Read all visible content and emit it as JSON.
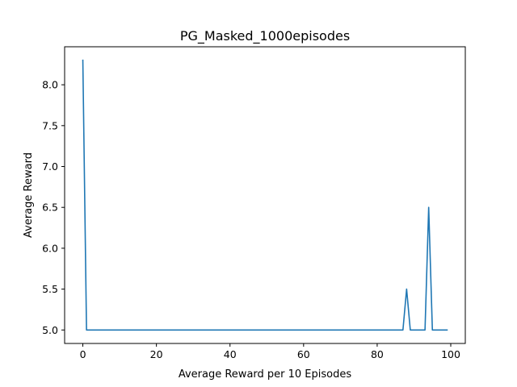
{
  "chart_data": {
    "type": "line",
    "title": "PG_Masked_1000episodes",
    "xlabel": "Average Reward per 10 Episodes",
    "ylabel": "Average Reward",
    "xlim": [
      -4.95,
      103.95
    ],
    "ylim": [
      4.835,
      8.465
    ],
    "grid": false,
    "legend": "none",
    "xticks": [
      0,
      20,
      40,
      60,
      80,
      100
    ],
    "xtick_labels": [
      "0",
      "20",
      "40",
      "60",
      "80",
      "100"
    ],
    "yticks": [
      5.0,
      5.5,
      6.0,
      6.5,
      7.0,
      7.5,
      8.0
    ],
    "ytick_labels": [
      "5.0",
      "5.5",
      "6.0",
      "6.5",
      "7.0",
      "7.5",
      "8.0"
    ],
    "series": [
      {
        "color": "#1f77b4",
        "x": [
          0,
          1,
          2,
          3,
          4,
          5,
          6,
          7,
          8,
          9,
          10,
          11,
          12,
          13,
          14,
          15,
          16,
          17,
          18,
          19,
          20,
          21,
          22,
          23,
          24,
          25,
          26,
          27,
          28,
          29,
          30,
          31,
          32,
          33,
          34,
          35,
          36,
          37,
          38,
          39,
          40,
          41,
          42,
          43,
          44,
          45,
          46,
          47,
          48,
          49,
          50,
          51,
          52,
          53,
          54,
          55,
          56,
          57,
          58,
          59,
          60,
          61,
          62,
          63,
          64,
          65,
          66,
          67,
          68,
          69,
          70,
          71,
          72,
          73,
          74,
          75,
          76,
          77,
          78,
          79,
          80,
          81,
          82,
          83,
          84,
          85,
          86,
          87,
          88,
          89,
          90,
          91,
          92,
          93,
          94,
          95,
          96,
          97,
          98,
          99
        ],
        "y": [
          8.3,
          5.0,
          5.0,
          5.0,
          5.0,
          5.0,
          5.0,
          5.0,
          5.0,
          5.0,
          5.0,
          5.0,
          5.0,
          5.0,
          5.0,
          5.0,
          5.0,
          5.0,
          5.0,
          5.0,
          5.0,
          5.0,
          5.0,
          5.0,
          5.0,
          5.0,
          5.0,
          5.0,
          5.0,
          5.0,
          5.0,
          5.0,
          5.0,
          5.0,
          5.0,
          5.0,
          5.0,
          5.0,
          5.0,
          5.0,
          5.0,
          5.0,
          5.0,
          5.0,
          5.0,
          5.0,
          5.0,
          5.0,
          5.0,
          5.0,
          5.0,
          5.0,
          5.0,
          5.0,
          5.0,
          5.0,
          5.0,
          5.0,
          5.0,
          5.0,
          5.0,
          5.0,
          5.0,
          5.0,
          5.0,
          5.0,
          5.0,
          5.0,
          5.0,
          5.0,
          5.0,
          5.0,
          5.0,
          5.0,
          5.0,
          5.0,
          5.0,
          5.0,
          5.0,
          5.0,
          5.0,
          5.0,
          5.0,
          5.0,
          5.0,
          5.0,
          5.0,
          5.0,
          5.5,
          5.0,
          5.0,
          5.0,
          5.0,
          5.0,
          6.5,
          5.0,
          5.0,
          5.0,
          5.0,
          5.0
        ]
      }
    ]
  }
}
